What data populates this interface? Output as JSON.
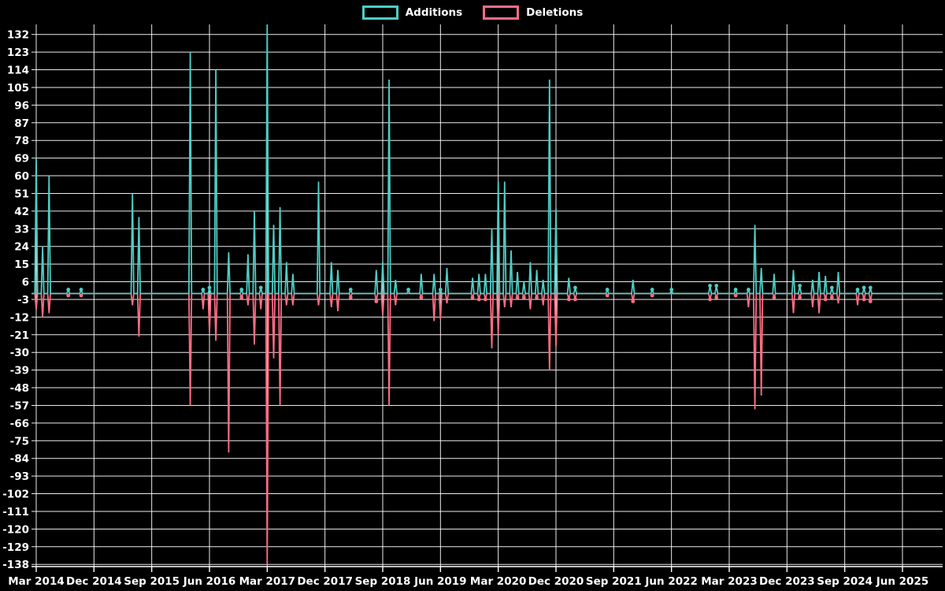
{
  "legend": {
    "additions_label": "Additions",
    "deletions_label": "Deletions"
  },
  "colors": {
    "background": "#000000",
    "grid": "#ffffff",
    "axis": "#ffffff",
    "text": "#ffffff",
    "additions": "#4ECDC4",
    "deletions": "#FC6C85"
  },
  "chart_data": {
    "type": "line",
    "title": "",
    "xlabel": "",
    "ylabel": "",
    "frequency": "monthly",
    "x_start": "2014-03",
    "x_end": "2025-12",
    "months_total": 142,
    "legend_position": "top-center",
    "grid": true,
    "ylim": [
      -139,
      138
    ],
    "y_ticks": [
      132,
      123,
      114,
      105,
      96,
      87,
      78,
      69,
      60,
      51,
      42,
      33,
      24,
      15,
      6,
      -3,
      -12,
      -21,
      -30,
      -39,
      -48,
      -57,
      -66,
      -75,
      -84,
      -93,
      -102,
      -111,
      -120,
      -129,
      -138
    ],
    "x_tick_labels": [
      "Mar 2014",
      "Dec 2014",
      "Sep 2015",
      "Jun 2016",
      "Mar 2017",
      "Dec 2017",
      "Sep 2018",
      "Jun 2019",
      "Mar 2020",
      "Dec 2020",
      "Sep 2021",
      "Jun 2022",
      "Mar 2023",
      "Dec 2023",
      "Sep 2024",
      "Jun 2025"
    ],
    "x_tick_month_indices": [
      0,
      9,
      18,
      27,
      36,
      45,
      54,
      63,
      72,
      81,
      90,
      99,
      108,
      117,
      126,
      135
    ],
    "series": [
      {
        "name": "Additions",
        "color_key": "additions",
        "values": [
          69,
          24,
          60,
          0,
          0,
          2,
          0,
          2,
          0,
          0,
          0,
          0,
          0,
          0,
          0,
          51,
          39,
          0,
          0,
          0,
          0,
          0,
          0,
          0,
          123,
          0,
          2,
          3,
          114,
          0,
          21,
          0,
          2,
          20,
          42,
          3,
          140,
          35,
          44,
          16,
          10,
          0,
          0,
          0,
          57,
          0,
          16,
          12,
          0,
          2,
          0,
          0,
          0,
          12,
          16,
          109,
          7,
          0,
          2,
          0,
          10,
          0,
          10,
          2,
          13,
          0,
          0,
          0,
          8,
          10,
          10,
          33,
          57,
          57,
          22,
          11,
          6,
          16,
          12,
          7,
          109,
          43,
          0,
          8,
          3,
          0,
          0,
          0,
          0,
          2,
          0,
          0,
          0,
          7,
          0,
          0,
          2,
          0,
          0,
          2,
          0,
          0,
          0,
          0,
          0,
          4,
          4,
          0,
          0,
          2,
          0,
          2,
          35,
          13,
          0,
          10,
          0,
          0,
          12,
          4,
          0,
          7,
          11,
          9,
          3,
          11,
          0,
          0,
          2,
          3,
          3,
          0,
          0,
          0,
          0,
          0,
          0,
          0,
          0,
          0,
          0,
          0
        ]
      },
      {
        "name": "Deletions",
        "color_key": "deletions",
        "values": [
          -8,
          -12,
          -10,
          0,
          0,
          -1,
          0,
          -1,
          0,
          0,
          0,
          0,
          0,
          0,
          0,
          -6,
          -22,
          0,
          0,
          0,
          0,
          0,
          0,
          0,
          -57,
          0,
          -8,
          -20,
          -24,
          0,
          -81,
          0,
          -2,
          -6,
          -26,
          -8,
          -138,
          -33,
          -57,
          -6,
          -6,
          0,
          0,
          0,
          -6,
          0,
          -7,
          -9,
          0,
          -2,
          0,
          0,
          0,
          -4,
          -11,
          -57,
          -6,
          0,
          0,
          0,
          -2,
          0,
          -14,
          -13,
          -5,
          0,
          0,
          0,
          -2,
          -3,
          -3,
          -28,
          -21,
          -7,
          -7,
          -2,
          -2,
          -8,
          -2,
          -6,
          -39,
          -27,
          0,
          -3,
          -3,
          0,
          0,
          0,
          0,
          -1,
          0,
          0,
          0,
          -4,
          0,
          0,
          -1,
          0,
          0,
          0,
          0,
          0,
          0,
          0,
          0,
          -3,
          -2,
          0,
          0,
          -1,
          0,
          -7,
          -59,
          -52,
          0,
          -2,
          0,
          0,
          -10,
          -2,
          0,
          -7,
          -10,
          -3,
          -2,
          -5,
          0,
          0,
          -6,
          -3,
          -4,
          0,
          0,
          0,
          0,
          0,
          0,
          0,
          0,
          0,
          0,
          0
        ]
      }
    ]
  }
}
